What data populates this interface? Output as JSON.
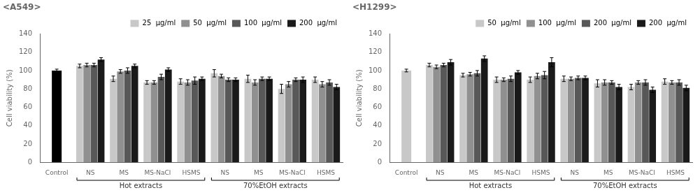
{
  "chart_data": [
    {
      "type": "bar",
      "title": "<A549>",
      "ylabel": "Cell viability (%)",
      "categories": [
        "Control",
        "NS",
        "MS",
        "MS-NaCl",
        "HSMS",
        "NS",
        "MS",
        "MS-NaCl",
        "HSMS"
      ],
      "series": [
        {
          "name": "25  μg/ml",
          "color": "#c8c8c8",
          "colors": [
            "#000000",
            "#c8c8c8",
            "#c8c8c8",
            "#c8c8c8",
            "#c8c8c8",
            "#c8c8c8",
            "#c8c8c8",
            "#c8c8c8",
            "#c8c8c8"
          ],
          "values": [
            100,
            105,
            91,
            87,
            88,
            97,
            91,
            80,
            90
          ],
          "errors": [
            1.5,
            2,
            3,
            2,
            3,
            4,
            4,
            5,
            3
          ]
        },
        {
          "name": "50  μg/ml",
          "color": "#909090",
          "values": [
            null,
            106,
            99,
            87,
            87,
            94,
            87,
            85,
            85
          ],
          "errors": [
            null,
            2,
            2,
            2,
            3,
            2,
            3,
            3,
            3
          ]
        },
        {
          "name": "100  μg/ml",
          "color": "#585858",
          "values": [
            null,
            106,
            100,
            93,
            89,
            90,
            91,
            90,
            87
          ],
          "errors": [
            null,
            2,
            3,
            3,
            4,
            2,
            2,
            2,
            3
          ]
        },
        {
          "name": "200  μg/ml",
          "color": "#1a1a1a",
          "values": [
            null,
            112,
            105,
            101,
            91,
            90,
            91,
            90,
            82
          ],
          "errors": [
            null,
            2,
            2,
            2,
            2,
            2,
            2,
            3,
            3
          ]
        }
      ],
      "annotations": [
        {
          "text": "Hot extracts",
          "span": [
            1,
            4
          ]
        },
        {
          "text": "70%EtOH extracts",
          "span": [
            5,
            8
          ]
        }
      ],
      "ylim": [
        0,
        140
      ],
      "yticks": [
        0,
        20,
        40,
        60,
        80,
        100,
        120,
        140
      ],
      "grid": false,
      "legend": "upper right"
    },
    {
      "type": "bar",
      "title": "<H1299>",
      "ylabel": "Cell viability (%)",
      "categories": [
        "Control",
        "NS",
        "MS",
        "MS-NaCl",
        "HSMS",
        "NS",
        "MS",
        "MS-NaCl",
        "HSMS"
      ],
      "series": [
        {
          "name": "50  μg/ml",
          "color": "#c8c8c8",
          "colors": [
            "#c8c8c8",
            "#c8c8c8",
            "#c8c8c8",
            "#c8c8c8",
            "#c8c8c8",
            "#c8c8c8",
            "#c8c8c8",
            "#c8c8c8",
            "#c8c8c8"
          ],
          "values": [
            100,
            106,
            95,
            90,
            90,
            91,
            86,
            82,
            88
          ],
          "errors": [
            1.5,
            2,
            2,
            3,
            3,
            3,
            4,
            3,
            3
          ]
        },
        {
          "name": "100  μg/ml",
          "color": "#909090",
          "values": [
            null,
            104,
            96,
            90,
            94,
            91,
            87,
            87,
            87
          ],
          "errors": [
            null,
            2,
            2,
            2,
            3,
            2,
            3,
            2,
            2
          ]
        },
        {
          "name": "200  μg/ml",
          "color": "#585858",
          "values": [
            null,
            106,
            97,
            91,
            95,
            92,
            87,
            87,
            87
          ],
          "errors": [
            null,
            2,
            3,
            3,
            4,
            2,
            2,
            3,
            3
          ]
        },
        {
          "name": "200  μg/ml",
          "color": "#1a1a1a",
          "values": [
            null,
            109,
            113,
            98,
            109,
            92,
            82,
            79,
            81
          ],
          "errors": [
            null,
            3,
            3,
            2,
            5,
            2,
            3,
            3,
            3
          ]
        }
      ],
      "annotations": [
        {
          "text": "Hot extracts",
          "span": [
            1,
            4
          ]
        },
        {
          "text": "70%EtOH extracts",
          "span": [
            5,
            8
          ]
        }
      ],
      "ylim": [
        0,
        140
      ],
      "yticks": [
        0,
        20,
        40,
        60,
        80,
        100,
        120,
        140
      ],
      "grid": false,
      "legend": "upper right"
    }
  ]
}
